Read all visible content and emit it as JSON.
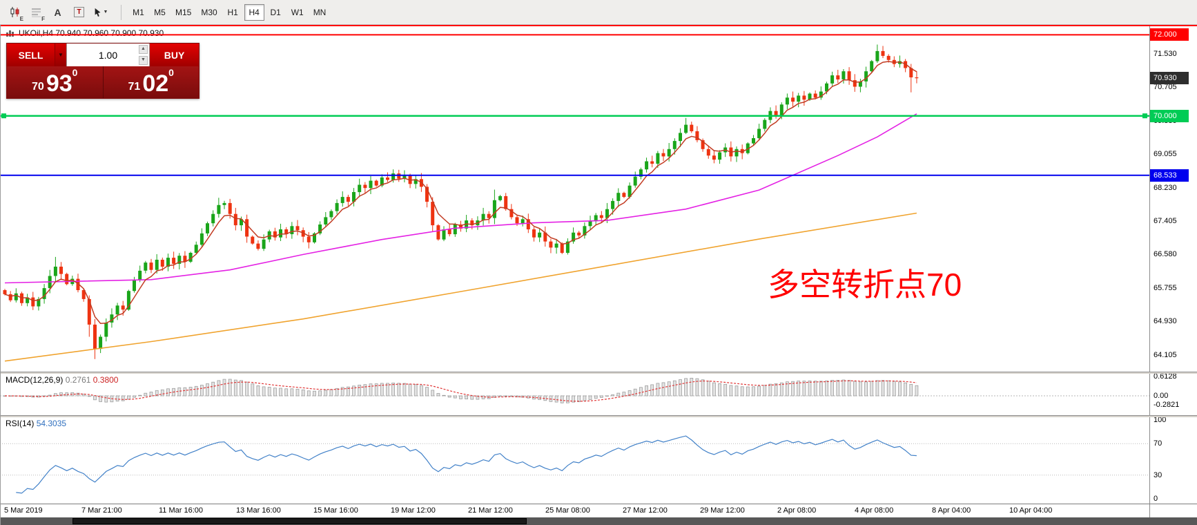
{
  "toolbar": {
    "tools": [
      {
        "id": "candlestick-chart",
        "badge": "E"
      },
      {
        "id": "market-depth",
        "badge": "F"
      },
      {
        "id": "text",
        "glyph": "A"
      },
      {
        "id": "text-label",
        "glyph": "T"
      },
      {
        "id": "crosshair",
        "caret": "▼"
      }
    ],
    "timeframes": [
      "M1",
      "M5",
      "M15",
      "M30",
      "H1",
      "H4",
      "D1",
      "W1",
      "MN"
    ],
    "active_timeframe": "H4"
  },
  "chart": {
    "symbol_header": "UKOil,H4  70.940 70.960 70.900 70.930",
    "ohlc": {
      "open": "70.940",
      "high": "70.960",
      "low": "70.900",
      "close": "70.930"
    }
  },
  "trade_panel": {
    "sell_label": "SELL",
    "buy_label": "BUY",
    "volume": "1.00",
    "sell_price": {
      "int": "70",
      "main": "93",
      "sup": "0"
    },
    "buy_price": {
      "int": "71",
      "main": "02",
      "sup": "0"
    }
  },
  "chart_data": {
    "type": "candlestick",
    "title": "UKOil,H4",
    "symbol": "UKOil",
    "period": "H4",
    "up_color": "#1aa51a",
    "down_color": "#ee3311",
    "first_open": 65.7,
    "closes": [
      65.6,
      65.45,
      65.62,
      65.38,
      65.52,
      65.3,
      65.48,
      65.75,
      66.05,
      66.28,
      66.1,
      65.85,
      65.98,
      65.7,
      65.48,
      64.85,
      64.25,
      64.55,
      64.9,
      65.1,
      65.32,
      65.22,
      65.68,
      65.95,
      66.18,
      66.38,
      66.2,
      66.45,
      66.28,
      66.5,
      66.35,
      66.55,
      66.4,
      66.62,
      66.82,
      67.1,
      67.35,
      67.58,
      67.8,
      67.85,
      67.58,
      67.3,
      67.45,
      67.02,
      66.85,
      66.72,
      66.95,
      67.15,
      67.0,
      67.2,
      67.08,
      67.28,
      67.18,
      67.02,
      66.88,
      67.1,
      67.32,
      67.5,
      67.65,
      67.85,
      68.0,
      67.88,
      68.12,
      68.3,
      68.22,
      68.4,
      68.28,
      68.48,
      68.42,
      68.58,
      68.45,
      68.52,
      68.32,
      68.44,
      68.25,
      67.88,
      67.3,
      66.95,
      67.2,
      67.08,
      67.32,
      67.22,
      67.42,
      67.3,
      67.42,
      67.58,
      67.48,
      67.92,
      68.02,
      67.7,
      67.5,
      67.35,
      67.45,
      67.2,
      67.0,
      67.12,
      66.9,
      66.75,
      66.85,
      66.62,
      66.9,
      67.12,
      67.05,
      67.28,
      67.4,
      67.55,
      67.48,
      67.7,
      67.9,
      68.1,
      68.0,
      68.28,
      68.5,
      68.68,
      68.88,
      68.82,
      69.08,
      69.0,
      69.18,
      69.38,
      69.58,
      69.78,
      69.62,
      69.4,
      69.18,
      69.02,
      68.92,
      69.1,
      69.22,
      69.0,
      69.18,
      69.08,
      69.32,
      69.45,
      69.68,
      69.9,
      70.12,
      70.02,
      70.28,
      70.45,
      70.35,
      70.5,
      70.4,
      70.55,
      70.45,
      70.6,
      70.8,
      71.0,
      70.9,
      71.1,
      70.88,
      70.72,
      70.85,
      71.1,
      71.35,
      71.6,
      71.48,
      71.38,
      71.28,
      71.35,
      71.18,
      70.95,
      70.93
    ],
    "wick_overrides": {
      "9": {
        "high": 66.52
      },
      "15": {
        "low": 64.55
      },
      "16": {
        "low": 64.0
      },
      "38": {
        "high": 67.98
      },
      "69": {
        "high": 68.68
      },
      "87": {
        "high": 68.18
      },
      "121": {
        "high": 69.95
      },
      "155": {
        "high": 71.76
      },
      "161": {
        "low": 70.58
      }
    },
    "wick_model": {
      "base": 0.03,
      "step": 0.012,
      "mod": 11,
      "hmul": 37,
      "lmul": 23
    },
    "ma_fast": {
      "color": "#c23b22",
      "period": 5
    },
    "ma_medium": {
      "color": "#e421e4",
      "points": [
        [
          0,
          65.88
        ],
        [
          26,
          65.96
        ],
        [
          40,
          66.2
        ],
        [
          53,
          66.58
        ],
        [
          67,
          66.95
        ],
        [
          80,
          67.23
        ],
        [
          94,
          67.36
        ],
        [
          107,
          67.42
        ],
        [
          121,
          67.7
        ],
        [
          134,
          68.17
        ],
        [
          148,
          69.02
        ],
        [
          155,
          69.48
        ],
        [
          162,
          70.05
        ]
      ]
    },
    "ma_slow": {
      "color": "#f0a32e",
      "points": [
        [
          0,
          63.95
        ],
        [
          26,
          64.43
        ],
        [
          53,
          64.99
        ],
        [
          80,
          65.64
        ],
        [
          107,
          66.3
        ],
        [
          134,
          66.96
        ],
        [
          162,
          67.6
        ]
      ]
    },
    "levels": [
      {
        "price": 72.0,
        "color": "#ff0000",
        "width": 2,
        "label": "72.000"
      },
      {
        "price": 70.0,
        "color": "#00cc55",
        "width": 2.5,
        "label": "70.000",
        "handles": true
      },
      {
        "price": 68.533,
        "color": "#0000ee",
        "width": 2,
        "label": "68.533"
      }
    ],
    "price_axis": {
      "ticks": [
        {
          "text": "71.530",
          "price": 71.53
        },
        {
          "text": "70.705",
          "price": 70.705
        },
        {
          "text": "69.880",
          "price": 69.88
        },
        {
          "text": "69.055",
          "price": 69.055
        },
        {
          "text": "68.230",
          "price": 68.23
        },
        {
          "text": "67.405",
          "price": 67.405
        },
        {
          "text": "66.580",
          "price": 66.58
        },
        {
          "text": "65.755",
          "price": 65.755
        },
        {
          "text": "64.930",
          "price": 64.93
        },
        {
          "text": "64.105",
          "price": 64.105
        }
      ],
      "flags": [
        {
          "text": "72.000",
          "price": 72.0,
          "bg": "#ff0000",
          "fg": "#ffffff"
        },
        {
          "text": "70.930",
          "price": 70.93,
          "bg": "#2e2e2e",
          "fg": "#ffffff"
        },
        {
          "text": "70.000",
          "price": 70.0,
          "bg": "#00cc55",
          "fg": "#ffffff"
        },
        {
          "text": "68.533",
          "price": 68.533,
          "bg": "#0000ee",
          "fg": "#ffffff"
        }
      ]
    },
    "time_labels": [
      "5 Mar 2019",
      "7 Mar 21:00",
      "11 Mar 16:00",
      "13 Mar 16:00",
      "15 Mar 16:00",
      "19 Mar 12:00",
      "21 Mar 12:00",
      "25 Mar 08:00",
      "27 Mar 12:00",
      "29 Mar 12:00",
      "2 Apr 08:00",
      "4 Apr 08:00",
      "8 Apr 04:00",
      "10 Apr 04:00"
    ],
    "indicators": {
      "macd": {
        "name": "MACD(12,26,9)",
        "main_value": "0.2761",
        "signal_value": "0.3800",
        "fast": 12,
        "slow": 26,
        "signal": 9,
        "ticks": [
          {
            "text": "0.6128",
            "v": 0.6128
          },
          {
            "text": "0.00",
            "v": 0
          },
          {
            "text": "-0.2821",
            "v": -0.2821
          }
        ]
      },
      "rsi": {
        "name": "RSI(14)",
        "value": "54.3035",
        "period": 14,
        "levels": [
          70,
          30
        ],
        "ticks": [
          {
            "text": "100",
            "v": 100
          },
          {
            "text": "70",
            "v": 70
          },
          {
            "text": "30",
            "v": 30
          },
          {
            "text": "0",
            "v": 0
          }
        ]
      }
    },
    "annotation": {
      "text": "多空转折点70",
      "color": "#ff0000"
    }
  }
}
